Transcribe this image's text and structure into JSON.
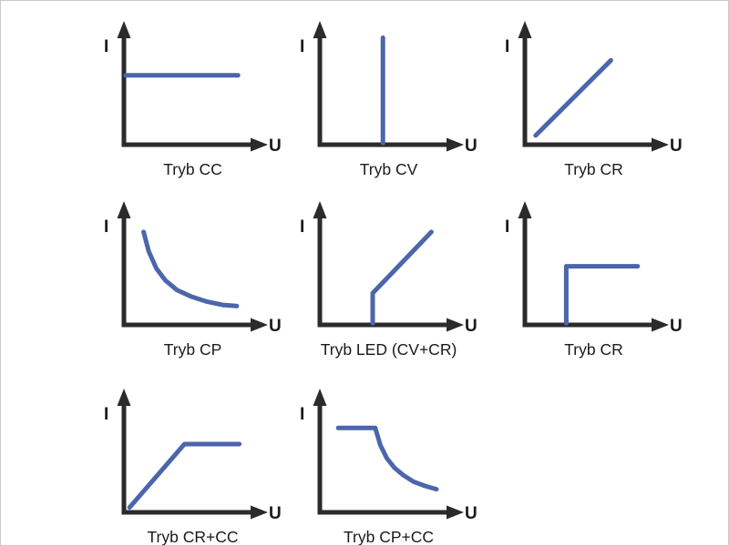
{
  "canvas": {
    "background": "#ffffff",
    "border_color": "#c9c9c9"
  },
  "colors": {
    "curve": "#4c66ab",
    "axis": "#2b2b2b",
    "label": "#1a1a1a"
  },
  "axis_labels": {
    "y": "I",
    "x": "U"
  },
  "plots": [
    {
      "label": "Tryb CC",
      "shape": "horizontal-line",
      "points": [
        [
          0.0,
          0.62
        ],
        [
          0.88,
          0.62
        ]
      ]
    },
    {
      "label": "Tryb CV",
      "shape": "vertical-line",
      "points": [
        [
          0.48,
          -0.01
        ],
        [
          0.48,
          0.97
        ]
      ]
    },
    {
      "label": "Tryb CR",
      "shape": "rising-line",
      "points": [
        [
          0.07,
          0.06
        ],
        [
          0.66,
          0.76
        ]
      ]
    },
    {
      "label": "Tryb CP",
      "shape": "hyperbolic-falling-curve",
      "points": [
        [
          0.14,
          0.84
        ],
        [
          0.18,
          0.66
        ],
        [
          0.24,
          0.5
        ],
        [
          0.31,
          0.39
        ],
        [
          0.4,
          0.3
        ],
        [
          0.51,
          0.24
        ],
        [
          0.64,
          0.19
        ],
        [
          0.76,
          0.16
        ],
        [
          0.87,
          0.15
        ]
      ]
    },
    {
      "label": "Tryb LED (CV+CR)",
      "shape": "vertical-then-rising-line",
      "points": [
        [
          0.4,
          -0.01
        ],
        [
          0.4,
          0.27
        ],
        [
          0.86,
          0.84
        ]
      ]
    },
    {
      "label": "Tryb CR",
      "shape": "vertical-then-horizontal-step",
      "points": [
        [
          0.31,
          -0.01
        ],
        [
          0.31,
          0.52
        ],
        [
          0.87,
          0.52
        ]
      ]
    },
    {
      "label": "Tryb CR+CC",
      "shape": "rising-line-then-plateau",
      "points": [
        [
          0.03,
          0.02
        ],
        [
          0.46,
          0.61
        ],
        [
          0.89,
          0.61
        ]
      ]
    },
    {
      "label": "Tryb CP+CC",
      "shape": "plateau-then-hyperbolic-falling",
      "points": [
        [
          0.13,
          0.76
        ],
        [
          0.42,
          0.76
        ],
        [
          0.46,
          0.6
        ],
        [
          0.51,
          0.48
        ],
        [
          0.57,
          0.39
        ],
        [
          0.64,
          0.32
        ],
        [
          0.72,
          0.26
        ],
        [
          0.81,
          0.22
        ],
        [
          0.9,
          0.19
        ]
      ]
    }
  ]
}
